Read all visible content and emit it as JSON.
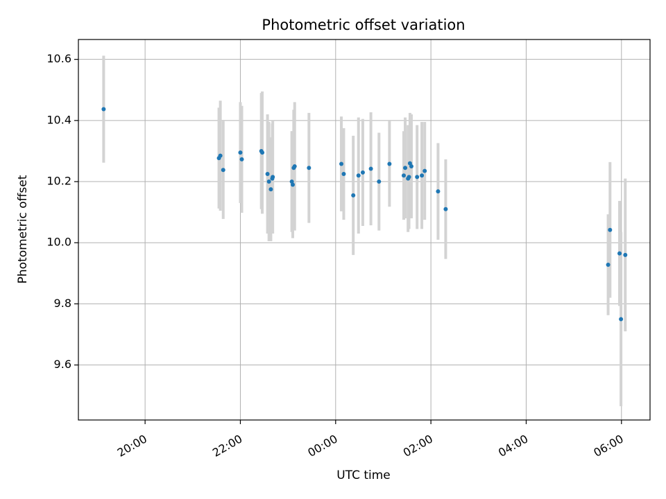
{
  "chart_data": {
    "type": "scatter",
    "title": "Photometric offset variation",
    "xlabel": "UTC time",
    "ylabel": "Photometric offset",
    "x_unit": "UTC clock time, hours relative to 00:00 (negative = previous evening)",
    "xlim": [
      -5.4,
      6.6
    ],
    "ylim": [
      9.42,
      10.665
    ],
    "grid": true,
    "x_ticks": [
      {
        "value": -4,
        "label": "20:00"
      },
      {
        "value": -2,
        "label": "22:00"
      },
      {
        "value": 0,
        "label": "00:00"
      },
      {
        "value": 2,
        "label": "02:00"
      },
      {
        "value": 4,
        "label": "04:00"
      },
      {
        "value": 6,
        "label": "06:00"
      }
    ],
    "y_ticks": [
      {
        "value": 9.6,
        "label": "9.6"
      },
      {
        "value": 9.8,
        "label": "9.8"
      },
      {
        "value": 10.0,
        "label": "10.0"
      },
      {
        "value": 10.2,
        "label": "10.2"
      },
      {
        "value": 10.4,
        "label": "10.4"
      },
      {
        "value": 10.6,
        "label": "10.6"
      }
    ],
    "colors": {
      "marker": "#1f77b4",
      "errorbar": "#d3d3d3",
      "grid": "#b0b0b0"
    },
    "points": [
      {
        "x": -4.87,
        "y": 10.437,
        "yerr": 0.175
      },
      {
        "x": -2.45,
        "y": 10.277,
        "yerr": 0.165
      },
      {
        "x": -2.42,
        "y": 10.285,
        "yerr": 0.18
      },
      {
        "x": -2.36,
        "y": 10.238,
        "yerr": 0.16
      },
      {
        "x": -2.0,
        "y": 10.295,
        "yerr": 0.165
      },
      {
        "x": -1.97,
        "y": 10.273,
        "yerr": 0.175
      },
      {
        "x": -1.56,
        "y": 10.3,
        "yerr": 0.19
      },
      {
        "x": -1.54,
        "y": 10.295,
        "yerr": 0.2
      },
      {
        "x": -1.43,
        "y": 10.225,
        "yerr": 0.195
      },
      {
        "x": -1.4,
        "y": 10.2,
        "yerr": 0.195
      },
      {
        "x": -1.36,
        "y": 10.175,
        "yerr": 0.17
      },
      {
        "x": -1.33,
        "y": 10.21,
        "yerr": 0.18
      },
      {
        "x": -1.32,
        "y": 10.215,
        "yerr": 0.185
      },
      {
        "x": -0.92,
        "y": 10.2,
        "yerr": 0.165
      },
      {
        "x": -0.9,
        "y": 10.19,
        "yerr": 0.175
      },
      {
        "x": -0.88,
        "y": 10.245,
        "yerr": 0.19
      },
      {
        "x": -0.86,
        "y": 10.25,
        "yerr": 0.21
      },
      {
        "x": -0.56,
        "y": 10.245,
        "yerr": 0.18
      },
      {
        "x": 0.12,
        "y": 10.258,
        "yerr": 0.155
      },
      {
        "x": 0.17,
        "y": 10.225,
        "yerr": 0.15
      },
      {
        "x": 0.37,
        "y": 10.155,
        "yerr": 0.195
      },
      {
        "x": 0.48,
        "y": 10.22,
        "yerr": 0.19
      },
      {
        "x": 0.57,
        "y": 10.23,
        "yerr": 0.175
      },
      {
        "x": 0.74,
        "y": 10.242,
        "yerr": 0.185
      },
      {
        "x": 0.91,
        "y": 10.2,
        "yerr": 0.16
      },
      {
        "x": 1.13,
        "y": 10.258,
        "yerr": 0.14
      },
      {
        "x": 1.43,
        "y": 10.22,
        "yerr": 0.145
      },
      {
        "x": 1.46,
        "y": 10.245,
        "yerr": 0.165
      },
      {
        "x": 1.52,
        "y": 10.21,
        "yerr": 0.175
      },
      {
        "x": 1.54,
        "y": 10.215,
        "yerr": 0.17
      },
      {
        "x": 1.56,
        "y": 10.26,
        "yerr": 0.165
      },
      {
        "x": 1.59,
        "y": 10.25,
        "yerr": 0.17
      },
      {
        "x": 1.71,
        "y": 10.215,
        "yerr": 0.17
      },
      {
        "x": 1.81,
        "y": 10.22,
        "yerr": 0.175
      },
      {
        "x": 1.87,
        "y": 10.235,
        "yerr": 0.16
      },
      {
        "x": 2.15,
        "y": 10.168,
        "yerr": 0.158
      },
      {
        "x": 2.31,
        "y": 10.11,
        "yerr": 0.163
      },
      {
        "x": 5.72,
        "y": 9.928,
        "yerr": 0.165
      },
      {
        "x": 5.76,
        "y": 10.042,
        "yerr": 0.222
      },
      {
        "x": 5.96,
        "y": 9.965,
        "yerr": 0.172
      },
      {
        "x": 5.99,
        "y": 9.75,
        "yerr": 0.285
      },
      {
        "x": 6.08,
        "y": 9.96,
        "yerr": 0.25
      }
    ]
  }
}
